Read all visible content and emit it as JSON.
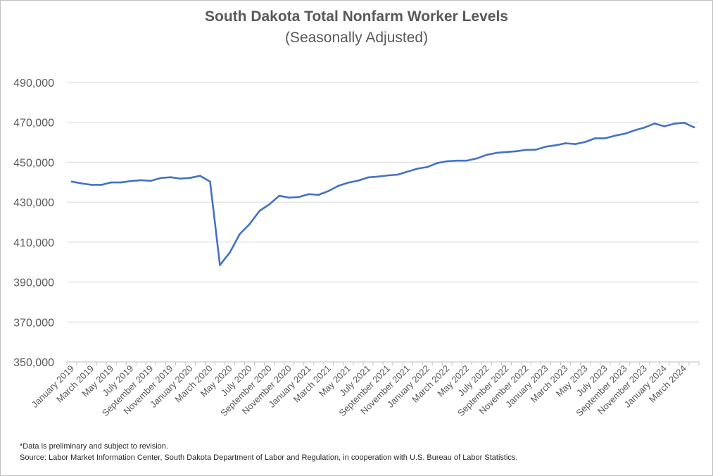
{
  "chart_data": {
    "type": "line",
    "title": "South Dakota Total Nonfarm Worker Levels",
    "subtitle": "(Seasonally Adjusted)",
    "ylim": [
      350000,
      490000
    ],
    "yticks": [
      350000,
      370000,
      390000,
      410000,
      430000,
      450000,
      470000,
      490000
    ],
    "ytick_labels": [
      "350,000",
      "370,000",
      "390,000",
      "410,000",
      "430,000",
      "450,000",
      "470,000",
      "490,000"
    ],
    "grid": true,
    "x": [
      "January 2019",
      "February 2019",
      "March 2019",
      "April 2019",
      "May 2019",
      "June 2019",
      "July 2019",
      "August 2019",
      "September 2019",
      "October 2019",
      "November 2019",
      "December 2019",
      "January 2020",
      "February 2020",
      "March 2020",
      "April 2020",
      "May 2020",
      "June 2020",
      "July 2020",
      "August 2020",
      "September 2020",
      "October 2020",
      "November 2020",
      "December 2020",
      "January 2021",
      "February 2021",
      "March 2021",
      "April 2021",
      "May 2021",
      "June 2021",
      "July 2021",
      "August 2021",
      "September 2021",
      "October 2021",
      "November 2021",
      "December 2021",
      "January 2022",
      "February 2022",
      "March 2022",
      "April 2022",
      "May 2022",
      "June 2022",
      "July 2022",
      "August 2022",
      "September 2022",
      "October 2022",
      "November 2022",
      "December 2022",
      "January 2023",
      "February 2023",
      "March 2023",
      "April 2023",
      "May 2023",
      "June 2023",
      "July 2023",
      "August 2023",
      "September 2023",
      "October 2023",
      "November 2023",
      "December 2023",
      "January 2024",
      "February 2024",
      "March 2024",
      "April 2024"
    ],
    "xtick_labels": [
      "January 2019",
      "March 2019",
      "May 2019",
      "July 2019",
      "September 2019",
      "November 2019",
      "January 2020",
      "March 2020",
      "May 2020",
      "July 2020",
      "September 2020",
      "November 2020",
      "January 2021",
      "March 2021",
      "May 2021",
      "July 2021",
      "September 2021",
      "November 2021",
      "January 2022",
      "March 2022",
      "May 2022",
      "July 2022",
      "September 2022",
      "November 2022",
      "January 2023",
      "March 2023",
      "May 2023",
      "July 2023",
      "September 2023",
      "November 2023",
      "January 2024",
      "March 2024"
    ],
    "series": [
      {
        "color": "#4472c4",
        "values": [
          440300,
          439400,
          438700,
          438700,
          439900,
          439900,
          440600,
          441000,
          440700,
          442100,
          442500,
          441800,
          442200,
          443200,
          440300,
          398500,
          404800,
          414000,
          419000,
          425600,
          428900,
          433200,
          432300,
          432600,
          434000,
          433700,
          435600,
          438200,
          439800,
          440800,
          442400,
          442800,
          443400,
          443800,
          445300,
          446800,
          447600,
          449600,
          450500,
          450800,
          450800,
          451900,
          453700,
          454700,
          455100,
          455500,
          456200,
          456300,
          457800,
          458500,
          459500,
          459100,
          460200,
          462000,
          462000,
          463300,
          464300,
          466000,
          467400,
          469400,
          468000,
          469300,
          469800,
          467500
        ]
      }
    ],
    "notes": [
      "*Data is preliminary and subject to revision.",
      "Source: Labor Market Information Center, South Dakota Department of Labor and Regulation, in cooperation with U.S. Bureau of Labor Statistics."
    ]
  }
}
